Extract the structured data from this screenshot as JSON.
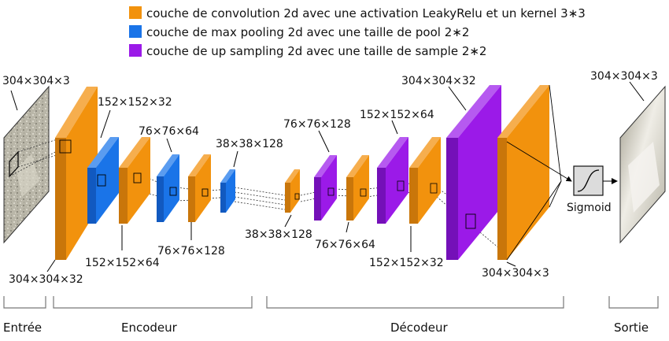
{
  "legend": [
    {
      "color": "#F2920D",
      "text": "couche de convolution 2d avec une activation LeakyRelu et un kernel 3∗3"
    },
    {
      "color": "#1A74E8",
      "text": "couche de max pooling 2d avec une taille de pool 2∗2"
    },
    {
      "color": "#9B1AE8",
      "text": "couche de up sampling 2d avec une taille de sample 2∗2"
    }
  ],
  "dims": {
    "input": "304×304×3",
    "enc_conv1": "304×304×32",
    "enc_pool1": "152×152×32",
    "enc_conv2": "152×152×64",
    "enc_pool2": "76×76×64",
    "enc_conv3": "76×76×128",
    "enc_pool3": "38×38×128",
    "dec_conv1": "38×38×128",
    "dec_up1": "76×76×128",
    "dec_conv2": "76×76×64",
    "dec_up2": "152×152×64",
    "dec_conv3": "152×152×32",
    "dec_up3": "304×304×32",
    "dec_conv4": "304×304×3",
    "output": "304×304×3"
  },
  "sigmoid_label": "Sigmoid",
  "sections": {
    "input": "Entrée",
    "encoder": "Encodeur",
    "decoder": "Décodeur",
    "output": "Sortie"
  }
}
